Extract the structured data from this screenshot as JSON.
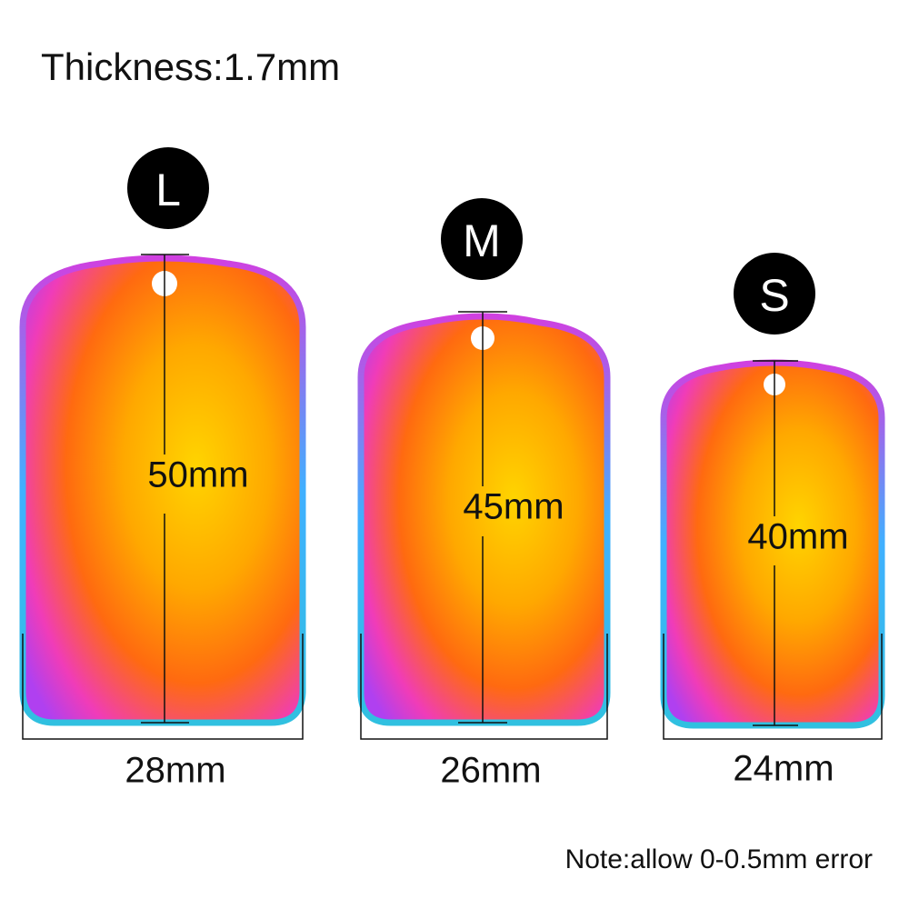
{
  "header": {
    "title": "Thickness:1.7mm"
  },
  "tags": [
    {
      "size": "L",
      "height": "50mm",
      "width": "28mm"
    },
    {
      "size": "M",
      "height": "45mm",
      "width": "26mm"
    },
    {
      "size": "S",
      "height": "40mm",
      "width": "24mm"
    }
  ],
  "note": "Note:allow 0-0.5mm error"
}
